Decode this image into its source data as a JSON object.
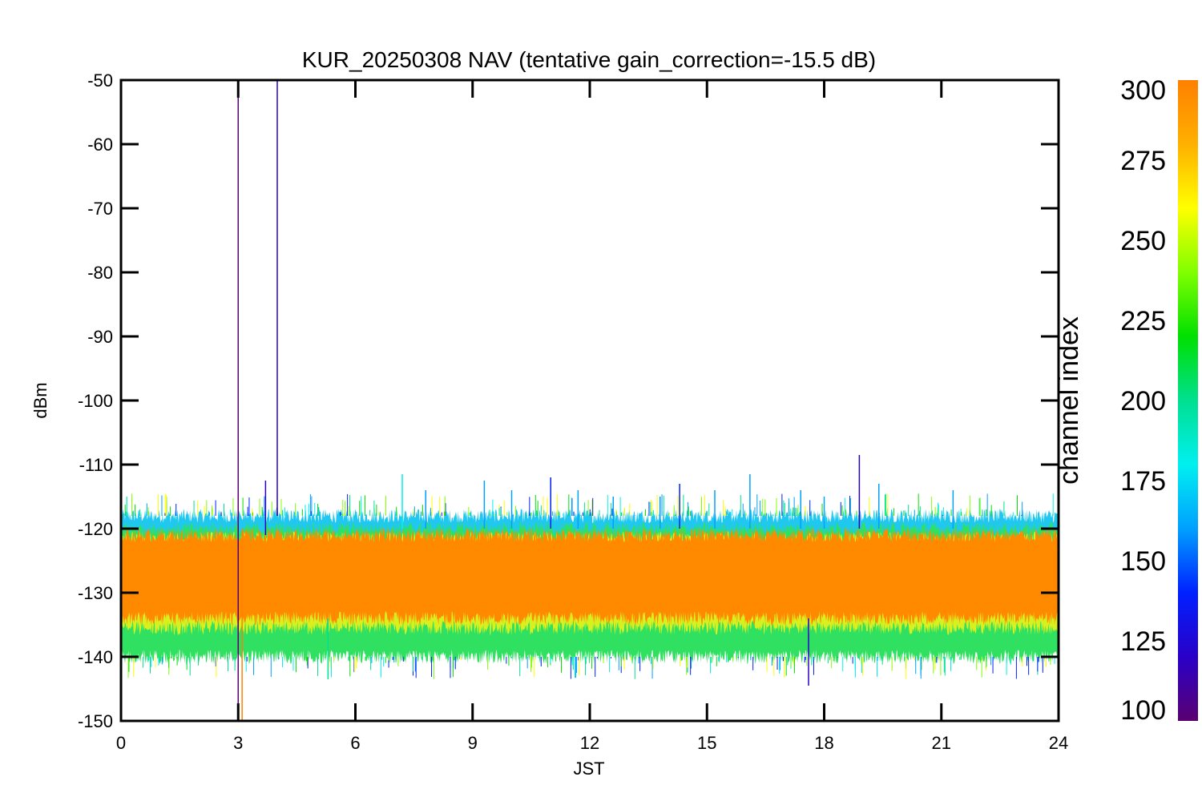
{
  "chart_data": {
    "type": "line",
    "title": "KUR_20250308 NAV (tentative gain_correction=-15.5 dB)",
    "xlabel": "JST",
    "ylabel": "dBm",
    "xlim": [
      0,
      24
    ],
    "ylim": [
      -150,
      -50
    ],
    "x_ticks": [
      0,
      3,
      6,
      9,
      12,
      15,
      18,
      21,
      24
    ],
    "y_ticks": [
      -50,
      -60,
      -70,
      -80,
      -90,
      -100,
      -110,
      -120,
      -130,
      -140,
      -150
    ],
    "grid": false,
    "noise_band": {
      "center_dBm": -128,
      "core_range_dBm": [
        -134,
        -121
      ],
      "outer_range_dBm": [
        -140,
        -118
      ],
      "data_gap_jst": [
        3.0,
        3.1
      ]
    },
    "spikes": [
      {
        "x": 3.0,
        "y_top": -50,
        "y_bottom": -150,
        "channel_index": 100
      },
      {
        "x": 3.1,
        "y_top": -120,
        "y_bottom": -150,
        "channel_index": 300
      },
      {
        "x": 4.0,
        "y_top": -50,
        "y_bottom": -118,
        "channel_index": 110
      },
      {
        "x": 3.7,
        "y_top": -112.5,
        "y_bottom": -121,
        "channel_index": 115
      },
      {
        "x": 7.2,
        "y_top": -111.5,
        "y_bottom": -120,
        "channel_index": 180
      },
      {
        "x": 7.8,
        "y_top": -114,
        "y_bottom": -120,
        "channel_index": 150
      },
      {
        "x": 9.3,
        "y_top": -112.5,
        "y_bottom": -120,
        "channel_index": 150
      },
      {
        "x": 10.0,
        "y_top": -114,
        "y_bottom": -120,
        "channel_index": 160
      },
      {
        "x": 11.0,
        "y_top": -112,
        "y_bottom": -120,
        "channel_index": 140
      },
      {
        "x": 11.7,
        "y_top": -114,
        "y_bottom": -120,
        "channel_index": 150
      },
      {
        "x": 12.6,
        "y_top": -115,
        "y_bottom": -120,
        "channel_index": 160
      },
      {
        "x": 13.8,
        "y_top": -115,
        "y_bottom": -120,
        "channel_index": 150
      },
      {
        "x": 14.3,
        "y_top": -113,
        "y_bottom": -120,
        "channel_index": 140
      },
      {
        "x": 15.2,
        "y_top": -114,
        "y_bottom": -120,
        "channel_index": 150
      },
      {
        "x": 16.1,
        "y_top": -111.5,
        "y_bottom": -120,
        "channel_index": 150
      },
      {
        "x": 17.4,
        "y_top": -114,
        "y_bottom": -120,
        "channel_index": 160
      },
      {
        "x": 18.0,
        "y_top": -115,
        "y_bottom": -120,
        "channel_index": 150
      },
      {
        "x": 18.9,
        "y_top": -108.5,
        "y_bottom": -120,
        "channel_index": 125
      },
      {
        "x": 19.4,
        "y_top": -113,
        "y_bottom": -120,
        "channel_index": 150
      },
      {
        "x": 21.3,
        "y_top": -114,
        "y_bottom": -120,
        "channel_index": 160
      },
      {
        "x": 17.6,
        "y_top": -134,
        "y_bottom": -144.5,
        "channel_index": 110
      },
      {
        "x": 5.3,
        "y_top": -134,
        "y_bottom": -143.5,
        "channel_index": 200
      }
    ],
    "colorbar": {
      "label": "channel index",
      "range": [
        100,
        300
      ],
      "ticks": [
        100,
        125,
        150,
        175,
        200,
        225,
        250,
        275,
        300
      ],
      "colormap": "rainbow",
      "colors": [
        "#5a0070",
        "#2a00c8",
        "#0020ff",
        "#00a0ff",
        "#00f0f0",
        "#00e090",
        "#00e000",
        "#80ff00",
        "#ffff00",
        "#ffb000",
        "#ff8000"
      ]
    },
    "series_colors": {
      "outer_lower": "#30e060",
      "outer_upper": "#20c8f0",
      "mid": "#d8f020",
      "core": "#ff8a00"
    }
  }
}
